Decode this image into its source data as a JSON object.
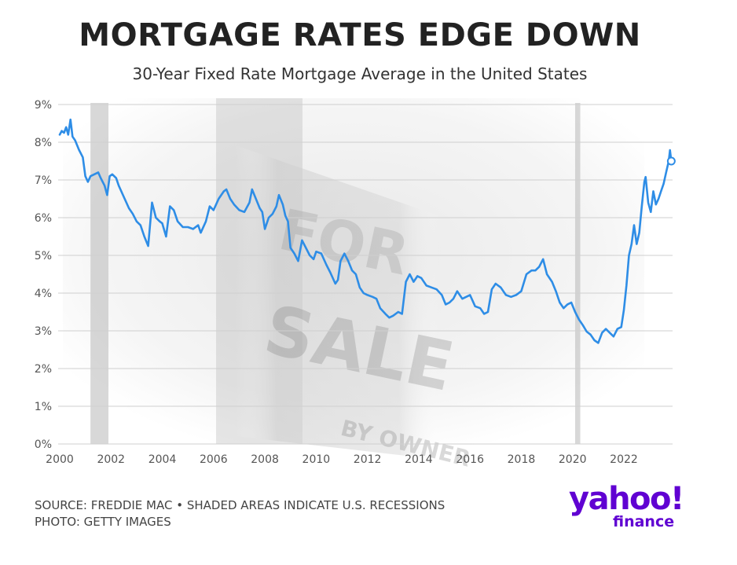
{
  "header": {
    "title": "MORTGAGE RATES EDGE DOWN",
    "subtitle": "30-Year Fixed Rate Mortgage Average in the United States"
  },
  "footer": {
    "source": "SOURCE: FREDDIE MAC • SHADED AREAS INDICATE U.S. RECESSIONS",
    "photo": "PHOTO: GETTY IMAGES"
  },
  "brand": {
    "name": "yahoo!",
    "sub": "finance",
    "color": "#6001d2"
  },
  "background_photo_text": [
    "FOR",
    "SALE",
    "BY OWNER"
  ],
  "chart_data": {
    "type": "line",
    "title": "",
    "xlabel": "",
    "ylabel": "",
    "x_ticks": [
      2000,
      2002,
      2004,
      2006,
      2008,
      2010,
      2012,
      2014,
      2016,
      2018,
      2020,
      2022
    ],
    "y_ticks": [
      "0%",
      "1%",
      "2%",
      "3%",
      "4%",
      "5%",
      "6%",
      "7%",
      "8%",
      "9%"
    ],
    "xlim": [
      2000,
      2023.9
    ],
    "ylim": [
      0,
      9
    ],
    "grid": "horizontal",
    "line_color": "#2e8de6",
    "recession_color": "#b8b8b8",
    "recessions": [
      [
        2001.2,
        2001.9
      ],
      [
        2020.1,
        2020.3
      ]
    ],
    "latest_marker": {
      "x": 2023.85,
      "y": 7.5
    },
    "series": [
      {
        "points": [
          [
            2000.0,
            8.2
          ],
          [
            2000.08,
            8.3
          ],
          [
            2000.17,
            8.25
          ],
          [
            2000.25,
            8.4
          ],
          [
            2000.33,
            8.2
          ],
          [
            2000.42,
            8.6
          ],
          [
            2000.5,
            8.15
          ],
          [
            2000.6,
            8.05
          ],
          [
            2000.75,
            7.8
          ],
          [
            2000.9,
            7.6
          ],
          [
            2001.0,
            7.1
          ],
          [
            2001.1,
            6.95
          ],
          [
            2001.2,
            7.1
          ],
          [
            2001.35,
            7.15
          ],
          [
            2001.5,
            7.2
          ],
          [
            2001.6,
            7.05
          ],
          [
            2001.75,
            6.85
          ],
          [
            2001.85,
            6.6
          ],
          [
            2001.95,
            7.1
          ],
          [
            2002.05,
            7.15
          ],
          [
            2002.2,
            7.05
          ],
          [
            2002.3,
            6.85
          ],
          [
            2002.5,
            6.55
          ],
          [
            2002.7,
            6.25
          ],
          [
            2002.85,
            6.1
          ],
          [
            2003.0,
            5.9
          ],
          [
            2003.15,
            5.8
          ],
          [
            2003.3,
            5.5
          ],
          [
            2003.45,
            5.25
          ],
          [
            2003.6,
            6.4
          ],
          [
            2003.75,
            6.0
          ],
          [
            2003.9,
            5.9
          ],
          [
            2004.0,
            5.85
          ],
          [
            2004.15,
            5.5
          ],
          [
            2004.3,
            6.3
          ],
          [
            2004.45,
            6.2
          ],
          [
            2004.6,
            5.9
          ],
          [
            2004.8,
            5.75
          ],
          [
            2005.0,
            5.75
          ],
          [
            2005.2,
            5.7
          ],
          [
            2005.4,
            5.8
          ],
          [
            2005.5,
            5.6
          ],
          [
            2005.7,
            5.9
          ],
          [
            2005.85,
            6.3
          ],
          [
            2006.0,
            6.2
          ],
          [
            2006.2,
            6.5
          ],
          [
            2006.4,
            6.7
          ],
          [
            2006.5,
            6.75
          ],
          [
            2006.65,
            6.5
          ],
          [
            2006.8,
            6.35
          ],
          [
            2007.0,
            6.2
          ],
          [
            2007.2,
            6.15
          ],
          [
            2007.4,
            6.4
          ],
          [
            2007.5,
            6.75
          ],
          [
            2007.65,
            6.5
          ],
          [
            2007.8,
            6.25
          ],
          [
            2007.9,
            6.15
          ],
          [
            2008.0,
            5.7
          ],
          [
            2008.15,
            6.0
          ],
          [
            2008.3,
            6.1
          ],
          [
            2008.45,
            6.3
          ],
          [
            2008.55,
            6.6
          ],
          [
            2008.7,
            6.35
          ],
          [
            2008.8,
            6.05
          ],
          [
            2008.9,
            5.9
          ],
          [
            2009.0,
            5.2
          ],
          [
            2009.15,
            5.05
          ],
          [
            2009.3,
            4.85
          ],
          [
            2009.45,
            5.4
          ],
          [
            2009.6,
            5.2
          ],
          [
            2009.75,
            5.0
          ],
          [
            2009.9,
            4.9
          ],
          [
            2010.0,
            5.1
          ],
          [
            2010.2,
            5.05
          ],
          [
            2010.4,
            4.75
          ],
          [
            2010.55,
            4.55
          ],
          [
            2010.75,
            4.25
          ],
          [
            2010.85,
            4.35
          ],
          [
            2010.95,
            4.85
          ],
          [
            2011.1,
            5.05
          ],
          [
            2011.25,
            4.85
          ],
          [
            2011.4,
            4.6
          ],
          [
            2011.55,
            4.5
          ],
          [
            2011.7,
            4.15
          ],
          [
            2011.85,
            4.0
          ],
          [
            2012.0,
            3.95
          ],
          [
            2012.2,
            3.9
          ],
          [
            2012.35,
            3.85
          ],
          [
            2012.5,
            3.6
          ],
          [
            2012.7,
            3.45
          ],
          [
            2012.85,
            3.35
          ],
          [
            2013.0,
            3.4
          ],
          [
            2013.2,
            3.5
          ],
          [
            2013.35,
            3.45
          ],
          [
            2013.5,
            4.3
          ],
          [
            2013.65,
            4.5
          ],
          [
            2013.8,
            4.3
          ],
          [
            2013.95,
            4.45
          ],
          [
            2014.1,
            4.4
          ],
          [
            2014.3,
            4.2
          ],
          [
            2014.5,
            4.15
          ],
          [
            2014.7,
            4.1
          ],
          [
            2014.9,
            3.95
          ],
          [
            2015.05,
            3.7
          ],
          [
            2015.2,
            3.75
          ],
          [
            2015.35,
            3.85
          ],
          [
            2015.5,
            4.05
          ],
          [
            2015.7,
            3.85
          ],
          [
            2015.85,
            3.9
          ],
          [
            2016.0,
            3.95
          ],
          [
            2016.2,
            3.65
          ],
          [
            2016.4,
            3.6
          ],
          [
            2016.55,
            3.45
          ],
          [
            2016.7,
            3.5
          ],
          [
            2016.85,
            4.1
          ],
          [
            2017.0,
            4.25
          ],
          [
            2017.2,
            4.15
          ],
          [
            2017.4,
            3.95
          ],
          [
            2017.6,
            3.9
          ],
          [
            2017.8,
            3.95
          ],
          [
            2018.0,
            4.05
          ],
          [
            2018.2,
            4.5
          ],
          [
            2018.4,
            4.6
          ],
          [
            2018.55,
            4.6
          ],
          [
            2018.7,
            4.7
          ],
          [
            2018.85,
            4.9
          ],
          [
            2019.0,
            4.5
          ],
          [
            2019.2,
            4.3
          ],
          [
            2019.35,
            4.05
          ],
          [
            2019.5,
            3.75
          ],
          [
            2019.65,
            3.6
          ],
          [
            2019.8,
            3.7
          ],
          [
            2019.95,
            3.75
          ],
          [
            2020.1,
            3.5
          ],
          [
            2020.25,
            3.3
          ],
          [
            2020.4,
            3.15
          ],
          [
            2020.55,
            2.98
          ],
          [
            2020.7,
            2.9
          ],
          [
            2020.85,
            2.75
          ],
          [
            2021.0,
            2.68
          ],
          [
            2021.15,
            2.95
          ],
          [
            2021.3,
            3.05
          ],
          [
            2021.45,
            2.95
          ],
          [
            2021.6,
            2.85
          ],
          [
            2021.75,
            3.05
          ],
          [
            2021.9,
            3.1
          ],
          [
            2022.0,
            3.55
          ],
          [
            2022.1,
            4.2
          ],
          [
            2022.2,
            5.0
          ],
          [
            2022.3,
            5.3
          ],
          [
            2022.4,
            5.8
          ],
          [
            2022.5,
            5.3
          ],
          [
            2022.6,
            5.6
          ],
          [
            2022.7,
            6.3
          ],
          [
            2022.8,
            6.95
          ],
          [
            2022.85,
            7.08
          ],
          [
            2022.95,
            6.4
          ],
          [
            2023.05,
            6.15
          ],
          [
            2023.15,
            6.7
          ],
          [
            2023.25,
            6.35
          ],
          [
            2023.35,
            6.5
          ],
          [
            2023.45,
            6.7
          ],
          [
            2023.55,
            6.9
          ],
          [
            2023.65,
            7.2
          ],
          [
            2023.75,
            7.5
          ],
          [
            2023.8,
            7.79
          ],
          [
            2023.85,
            7.5
          ]
        ]
      }
    ]
  }
}
